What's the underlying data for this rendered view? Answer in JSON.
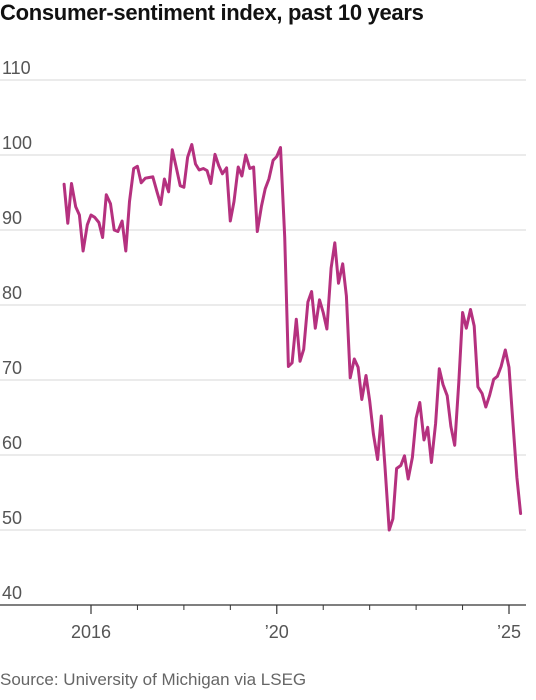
{
  "title": "Consumer-sentiment index, past 10 years",
  "source": "Source: University of Michigan via LSEG",
  "colors": {
    "series": "#b5317f",
    "grid": "#d7d7d7",
    "axis": "#333333",
    "text": "#555555"
  },
  "chart_data": {
    "type": "line",
    "title": "Consumer-sentiment index, past 10 years",
    "xlabel": "",
    "ylabel": "",
    "ylim": [
      40,
      110
    ],
    "y_ticks": [
      40,
      50,
      60,
      70,
      80,
      90,
      100,
      110
    ],
    "y_tick_labels": [
      "40",
      "50",
      "60",
      "70",
      "80",
      "90",
      "100",
      "110"
    ],
    "grid": true,
    "x_tick_labels": [
      {
        "x": 2016.0,
        "label": "2016"
      },
      {
        "x": 2020.0,
        "label": "’20"
      },
      {
        "x": 2025.0,
        "label": "’25"
      }
    ],
    "x_minor_ticks": [
      2017,
      2018,
      2019,
      2021,
      2022,
      2023,
      2024
    ],
    "xlim": [
      2015.25,
      2025.4
    ],
    "series": [
      {
        "points": [
          [
            2015.42,
            96.1
          ],
          [
            2015.5,
            90.9
          ],
          [
            2015.58,
            96.2
          ],
          [
            2015.67,
            93.1
          ],
          [
            2015.75,
            92.0
          ],
          [
            2015.83,
            87.2
          ],
          [
            2015.92,
            90.7
          ],
          [
            2016.0,
            92.0
          ],
          [
            2016.08,
            91.7
          ],
          [
            2016.17,
            91.0
          ],
          [
            2016.25,
            89.0
          ],
          [
            2016.33,
            94.7
          ],
          [
            2016.42,
            93.5
          ],
          [
            2016.5,
            90.0
          ],
          [
            2016.58,
            89.8
          ],
          [
            2016.67,
            91.2
          ],
          [
            2016.75,
            87.2
          ],
          [
            2016.83,
            93.8
          ],
          [
            2016.92,
            98.2
          ],
          [
            2017.0,
            98.5
          ],
          [
            2017.08,
            96.3
          ],
          [
            2017.17,
            96.9
          ],
          [
            2017.25,
            97.0
          ],
          [
            2017.33,
            97.1
          ],
          [
            2017.42,
            95.1
          ],
          [
            2017.5,
            93.4
          ],
          [
            2017.58,
            96.8
          ],
          [
            2017.67,
            95.1
          ],
          [
            2017.75,
            100.7
          ],
          [
            2017.83,
            98.5
          ],
          [
            2017.92,
            95.9
          ],
          [
            2018.0,
            95.7
          ],
          [
            2018.08,
            99.7
          ],
          [
            2018.17,
            101.4
          ],
          [
            2018.25,
            98.8
          ],
          [
            2018.33,
            98.0
          ],
          [
            2018.42,
            98.2
          ],
          [
            2018.5,
            97.9
          ],
          [
            2018.58,
            96.2
          ],
          [
            2018.67,
            100.1
          ],
          [
            2018.75,
            98.6
          ],
          [
            2018.83,
            97.5
          ],
          [
            2018.92,
            98.3
          ],
          [
            2019.0,
            91.2
          ],
          [
            2019.08,
            93.8
          ],
          [
            2019.17,
            98.4
          ],
          [
            2019.25,
            97.2
          ],
          [
            2019.33,
            100.0
          ],
          [
            2019.42,
            98.2
          ],
          [
            2019.5,
            98.4
          ],
          [
            2019.58,
            89.8
          ],
          [
            2019.67,
            93.2
          ],
          [
            2019.75,
            95.5
          ],
          [
            2019.83,
            96.8
          ],
          [
            2019.92,
            99.3
          ],
          [
            2020.0,
            99.8
          ],
          [
            2020.08,
            101.0
          ],
          [
            2020.17,
            89.1
          ],
          [
            2020.25,
            71.8
          ],
          [
            2020.33,
            72.3
          ],
          [
            2020.42,
            78.1
          ],
          [
            2020.5,
            72.5
          ],
          [
            2020.58,
            74.1
          ],
          [
            2020.67,
            80.4
          ],
          [
            2020.75,
            81.8
          ],
          [
            2020.83,
            76.9
          ],
          [
            2020.92,
            80.7
          ],
          [
            2021.0,
            79.0
          ],
          [
            2021.08,
            76.8
          ],
          [
            2021.17,
            84.9
          ],
          [
            2021.25,
            88.3
          ],
          [
            2021.33,
            82.9
          ],
          [
            2021.42,
            85.5
          ],
          [
            2021.5,
            81.2
          ],
          [
            2021.58,
            70.3
          ],
          [
            2021.67,
            72.8
          ],
          [
            2021.75,
            71.7
          ],
          [
            2021.83,
            67.4
          ],
          [
            2021.92,
            70.6
          ],
          [
            2022.0,
            67.2
          ],
          [
            2022.08,
            62.8
          ],
          [
            2022.17,
            59.4
          ],
          [
            2022.25,
            65.2
          ],
          [
            2022.33,
            58.4
          ],
          [
            2022.42,
            50.0
          ],
          [
            2022.5,
            51.5
          ],
          [
            2022.58,
            58.2
          ],
          [
            2022.67,
            58.6
          ],
          [
            2022.75,
            59.9
          ],
          [
            2022.83,
            56.8
          ],
          [
            2022.92,
            59.7
          ],
          [
            2023.0,
            64.9
          ],
          [
            2023.08,
            67.0
          ],
          [
            2023.17,
            62.0
          ],
          [
            2023.25,
            63.7
          ],
          [
            2023.33,
            59.0
          ],
          [
            2023.42,
            64.2
          ],
          [
            2023.5,
            71.5
          ],
          [
            2023.58,
            69.4
          ],
          [
            2023.67,
            67.9
          ],
          [
            2023.75,
            63.8
          ],
          [
            2023.83,
            61.3
          ],
          [
            2023.92,
            69.7
          ],
          [
            2024.0,
            79.0
          ],
          [
            2024.08,
            76.9
          ],
          [
            2024.17,
            79.4
          ],
          [
            2024.25,
            77.2
          ],
          [
            2024.33,
            69.1
          ],
          [
            2024.42,
            68.2
          ],
          [
            2024.5,
            66.4
          ],
          [
            2024.58,
            67.9
          ],
          [
            2024.67,
            70.1
          ],
          [
            2024.75,
            70.5
          ],
          [
            2024.83,
            71.8
          ],
          [
            2024.92,
            74.0
          ],
          [
            2025.0,
            71.7
          ],
          [
            2025.08,
            64.7
          ],
          [
            2025.17,
            57.0
          ],
          [
            2025.25,
            52.2
          ]
        ]
      }
    ]
  }
}
